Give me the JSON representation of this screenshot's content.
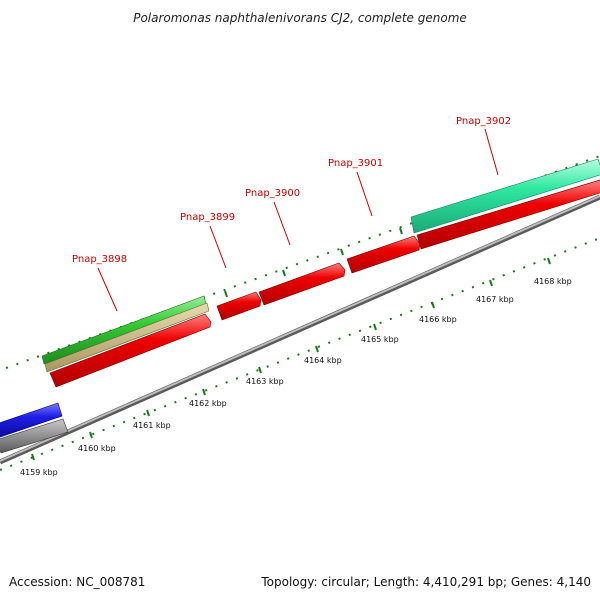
{
  "title": "Polaromonas naphthalenivorans CJ2, complete genome",
  "footer": {
    "accession": "Accession: NC_008781",
    "summary": "Topology: circular; Length: 4,410,291 bp; Genes: 4,140"
  },
  "colors": {
    "red_cds": "#ee0000",
    "green_feature": "#33cc33",
    "tan_feature": "#c2b27a",
    "aqua_feature": "#2ee8a0",
    "blue_feature": "#1f1fe6",
    "backbone": "#888888",
    "tick": "#1a7a1a",
    "label": "#cc0000"
  },
  "genes": [
    {
      "name": "Pnap_3898"
    },
    {
      "name": "Pnap_3899"
    },
    {
      "name": "Pnap_3900"
    },
    {
      "name": "Pnap_3901"
    },
    {
      "name": "Pnap_3902"
    }
  ],
  "kbp_labels": [
    "4159 kbp",
    "4160 kbp",
    "4161 kbp",
    "4162 kbp",
    "4163 kbp",
    "4164 kbp",
    "4165 kbp",
    "4166 kbp",
    "4167 kbp",
    "4168 kbp"
  ]
}
